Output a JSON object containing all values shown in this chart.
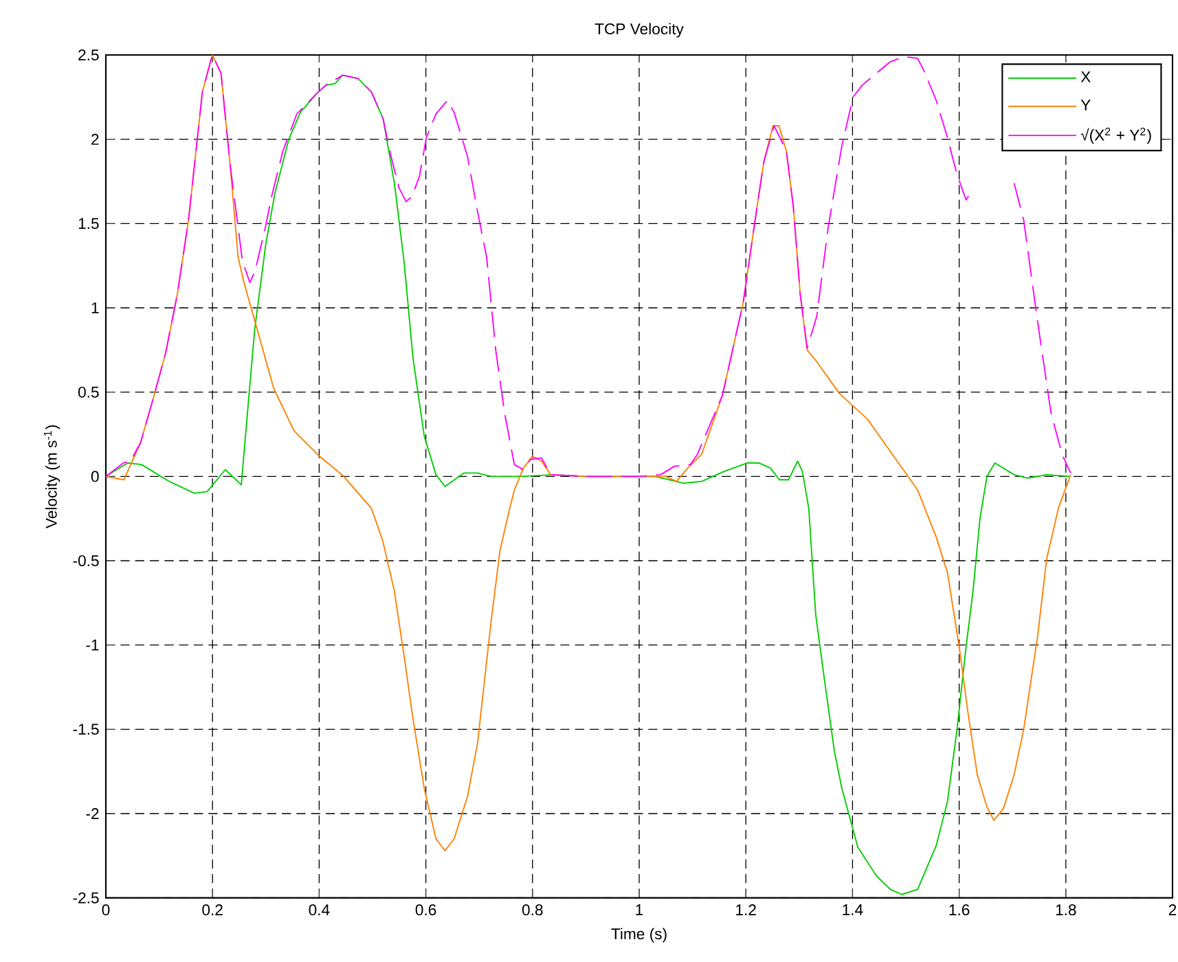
{
  "chart_data": {
    "type": "line",
    "title": "TCP Velocity",
    "xlabel": "Time (s)",
    "ylabel": "Velocity (m s$^{-1}$)",
    "xlim": [
      0,
      2
    ],
    "xticks": [
      0,
      0.2,
      0.4,
      0.6,
      0.8,
      1,
      1.2,
      1.4,
      1.6,
      1.8,
      2
    ],
    "ylim": [
      -2.5,
      2.5
    ],
    "yticks": [
      -2.5,
      -2,
      -1.5,
      -1,
      -0.5,
      0,
      0.5,
      1,
      1.5,
      2,
      2.5
    ],
    "grid": true,
    "legend": "top right",
    "series": [
      {
        "name": "X",
        "color": "#00cc00",
        "x": [
          0,
          0.041,
          0.067,
          0.119,
          0.166,
          0.19,
          0.224,
          0.254,
          0.261,
          0.279,
          0.3,
          0.317,
          0.343,
          0.365,
          0.395,
          0.412,
          0.43,
          0.444,
          0.473,
          0.498,
          0.52,
          0.541,
          0.559,
          0.576,
          0.597,
          0.619,
          0.636,
          0.671,
          0.697,
          0.722,
          0.78,
          0.84,
          0.9,
          1.0,
          1.03,
          1.083,
          1.117,
          1.16,
          1.203,
          1.224,
          1.246,
          1.263,
          1.28,
          1.297,
          1.306,
          1.318,
          1.331,
          1.348,
          1.366,
          1.38,
          1.41,
          1.445,
          1.471,
          1.492,
          1.522,
          1.557,
          1.578,
          1.596,
          1.613,
          1.626,
          1.639,
          1.652,
          1.667,
          1.703,
          1.729,
          1.764,
          1.807
        ],
        "values": [
          0,
          0.08,
          0.07,
          -0.03,
          -0.1,
          -0.09,
          0.04,
          -0.05,
          0.21,
          0.87,
          1.38,
          1.68,
          2.0,
          2.16,
          2.27,
          2.32,
          2.33,
          2.38,
          2.36,
          2.28,
          2.12,
          1.74,
          1.28,
          0.7,
          0.24,
          0.01,
          -0.06,
          0.02,
          0.02,
          0,
          0,
          0.01,
          0,
          0,
          0,
          -0.04,
          -0.03,
          0.03,
          0.08,
          0.08,
          0.05,
          -0.02,
          -0.02,
          0.09,
          0.03,
          -0.19,
          -0.82,
          -1.22,
          -1.63,
          -1.85,
          -2.2,
          -2.37,
          -2.45,
          -2.48,
          -2.45,
          -2.19,
          -1.93,
          -1.5,
          -1.01,
          -0.68,
          -0.25,
          0,
          0.08,
          0.01,
          -0.01,
          0.01,
          0
        ]
      },
      {
        "name": "Y",
        "color": "#ff8000",
        "x": [
          0,
          0.034,
          0.065,
          0.086,
          0.112,
          0.134,
          0.155,
          0.181,
          0.197,
          0.2,
          0.216,
          0.233,
          0.248,
          0.259,
          0.284,
          0.315,
          0.353,
          0.397,
          0.446,
          0.498,
          0.519,
          0.541,
          0.559,
          0.576,
          0.597,
          0.619,
          0.636,
          0.653,
          0.678,
          0.697,
          0.722,
          0.739,
          0.755,
          0.766,
          0.783,
          0.8,
          0.817,
          0.834,
          0.9,
          1.0,
          1.05,
          1.07,
          1.091,
          1.117,
          1.156,
          1.195,
          1.221,
          1.234,
          1.251,
          1.262,
          1.276,
          1.289,
          1.302,
          1.315,
          1.333,
          1.376,
          1.428,
          1.475,
          1.522,
          1.557,
          1.578,
          1.6,
          1.616,
          1.634,
          1.652,
          1.665,
          1.683,
          1.703,
          1.721,
          1.747,
          1.764,
          1.786,
          1.809
        ],
        "values": [
          0,
          -0.02,
          0.2,
          0.43,
          0.73,
          1.08,
          1.52,
          2.28,
          2.47,
          2.5,
          2.39,
          1.85,
          1.3,
          1.15,
          0.87,
          0.52,
          0.27,
          0.13,
          0,
          -0.19,
          -0.38,
          -0.68,
          -1.06,
          -1.44,
          -1.85,
          -2.15,
          -2.22,
          -2.15,
          -1.9,
          -1.58,
          -0.87,
          -0.44,
          -0.22,
          -0.08,
          0.05,
          0.12,
          0.09,
          0.01,
          0,
          0,
          0,
          -0.03,
          0.05,
          0.13,
          0.48,
          1.03,
          1.6,
          1.87,
          2.08,
          2.08,
          1.93,
          1.6,
          1.08,
          0.75,
          0.68,
          0.49,
          0.34,
          0.13,
          -0.08,
          -0.36,
          -0.57,
          -1.01,
          -1.39,
          -1.77,
          -1.96,
          -2.04,
          -1.97,
          -1.77,
          -1.5,
          -0.95,
          -0.49,
          -0.19,
          0.01
        ]
      },
      {
        "name": "√(X$^{2}$ + Y$^{2}$)",
        "color": "#ff00ff",
        "line_style": "dashed",
        "x": [
          0,
          0.033,
          0.046,
          0.065,
          0.086,
          0.112,
          0.134,
          0.155,
          0.181,
          0.197,
          0.2,
          0.216,
          0.233,
          0.256,
          0.27,
          0.28,
          0.3,
          0.31,
          0.332,
          0.358,
          0.395,
          0.412,
          0.444,
          0.473,
          0.498,
          0.52,
          0.533,
          0.55,
          0.563,
          0.574,
          0.588,
          0.601,
          0.619,
          0.64,
          0.653,
          0.678,
          0.697,
          0.714,
          0.731,
          0.748,
          0.766,
          0.783,
          0.796,
          0.817,
          0.834,
          0.9,
          1.0,
          1.04,
          1.066,
          1.096,
          1.109,
          1.156,
          1.195,
          1.221,
          1.234,
          1.253,
          1.276,
          1.289,
          1.302,
          1.315,
          1.333,
          1.354,
          1.38,
          1.401,
          1.418,
          1.448,
          1.471,
          1.497,
          1.522,
          1.535,
          1.557,
          1.578,
          1.596,
          1.613,
          1.626,
          1.665,
          1.703,
          1.721,
          1.747,
          1.772,
          1.793,
          1.809
        ],
        "values": [
          0,
          0.08,
          0.09,
          0.2,
          0.43,
          0.73,
          1.08,
          1.52,
          2.28,
          2.47,
          2.5,
          2.39,
          1.85,
          1.28,
          1.15,
          1.22,
          1.49,
          1.65,
          1.93,
          2.15,
          2.27,
          2.32,
          2.38,
          2.36,
          2.28,
          2.12,
          1.92,
          1.71,
          1.63,
          1.66,
          1.78,
          2.01,
          2.15,
          2.23,
          2.16,
          1.9,
          1.57,
          1.3,
          0.75,
          0.37,
          0.07,
          0.04,
          0.1,
          0.11,
          0.01,
          0,
          0,
          0.01,
          0.06,
          0.07,
          0.13,
          0.48,
          1.03,
          1.6,
          1.87,
          2.08,
          1.93,
          1.6,
          1.08,
          0.76,
          0.95,
          1.47,
          1.96,
          2.25,
          2.32,
          2.4,
          2.46,
          2.49,
          2.48,
          2.4,
          2.23,
          2.01,
          1.79,
          1.64,
          1.71,
          null,
          1.74,
          1.52,
          0.92,
          0.38,
          0.13,
          0.02
        ]
      }
    ]
  }
}
